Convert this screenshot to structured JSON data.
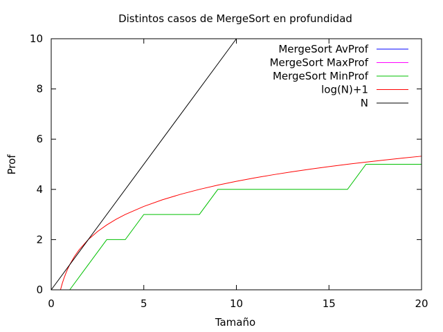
{
  "chart_data": {
    "type": "line",
    "title": "Distintos casos de MergeSort en profundidad",
    "xlabel": "Tamaño",
    "ylabel": "Prof",
    "xlim": [
      0,
      20
    ],
    "ylim": [
      0,
      10
    ],
    "xticks": [
      0,
      5,
      10,
      15,
      20
    ],
    "yticks": [
      0,
      2,
      4,
      6,
      8,
      10
    ],
    "grid": false,
    "legend_position": "top-right",
    "series": [
      {
        "name": "MergeSort AvProf",
        "color": "#0000ff",
        "x": [],
        "y": []
      },
      {
        "name": "MergeSort MaxProf",
        "color": "#ff00ff",
        "x": [],
        "y": []
      },
      {
        "name": "MergeSort MinProf",
        "color": "#00c000",
        "x": [
          1,
          3,
          4,
          5,
          8,
          9,
          16,
          17,
          20
        ],
        "y": [
          0,
          2,
          2,
          3,
          3,
          4,
          4,
          5,
          5
        ]
      },
      {
        "name": "log(N)+1",
        "color": "#ff0000",
        "x": [
          0.5,
          0.6,
          0.7,
          0.8,
          0.9,
          1,
          1.25,
          1.5,
          2,
          2.5,
          3,
          3.5,
          4,
          5,
          6,
          7,
          8,
          9,
          10,
          11,
          12,
          13,
          14,
          15,
          16,
          17,
          18,
          19,
          20
        ],
        "y": [
          0,
          0.263,
          0.485,
          0.678,
          0.848,
          1,
          1.322,
          1.585,
          2,
          2.322,
          2.585,
          2.807,
          3,
          3.322,
          3.585,
          3.807,
          4,
          4.17,
          4.322,
          4.459,
          4.585,
          4.7,
          4.807,
          4.907,
          5,
          5.087,
          5.17,
          5.248,
          5.322
        ]
      },
      {
        "name": "N",
        "color": "#000000",
        "x": [
          0,
          10
        ],
        "y": [
          0,
          10
        ]
      }
    ]
  }
}
